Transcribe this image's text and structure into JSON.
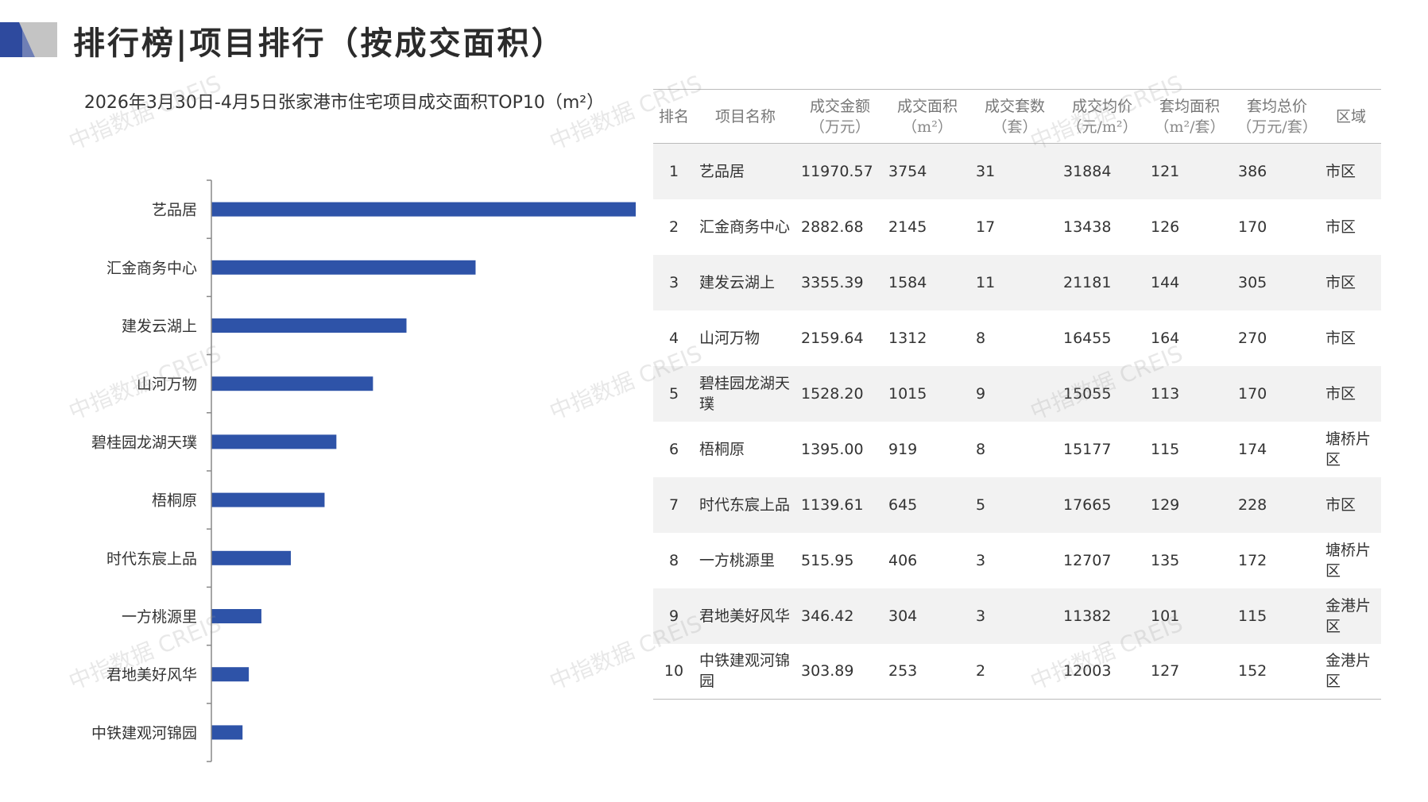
{
  "page": {
    "title": "排行榜|项目排行（按成交面积）"
  },
  "colors": {
    "bar": "#2e53a8",
    "logo_dark": "#2e4a9e",
    "logo_light": "#c4c4c4",
    "row_alt": "#f2f2f2"
  },
  "watermark": {
    "text": "中指数据 CREIS"
  },
  "chart_data": {
    "type": "bar",
    "orientation": "horizontal",
    "title": "2026年3月30日-4月5日张家港市住宅项目成交面积TOP10（m²）",
    "categories": [
      "艺品居",
      "汇金商务中心",
      "建发云湖上",
      "山河万物",
      "碧桂园龙湖天璞",
      "梧桐原",
      "时代东宸上品",
      "一方桃源里",
      "君地美好风华",
      "中铁建观河锦园"
    ],
    "values": [
      3754,
      2145,
      1584,
      1312,
      1015,
      919,
      645,
      406,
      304,
      253
    ],
    "xlim": [
      0,
      4000
    ],
    "grid": false,
    "legend": "none"
  },
  "table": {
    "headers": [
      {
        "line1": "排名",
        "line2": ""
      },
      {
        "line1": "项目名称",
        "line2": ""
      },
      {
        "line1": "成交金额",
        "line2": "（万元）"
      },
      {
        "line1": "成交面积",
        "line2": "（m²）"
      },
      {
        "line1": "成交套数",
        "line2": "（套）"
      },
      {
        "line1": "成交均价",
        "line2": "（元/m²）"
      },
      {
        "line1": "套均面积",
        "line2": "（m²/套）"
      },
      {
        "line1": "套均总价",
        "line2": "（万元/套）"
      },
      {
        "line1": "区域",
        "line2": ""
      }
    ],
    "rows": [
      {
        "rank": "1",
        "name": "艺品居",
        "amount": "11970.57",
        "area": "3754",
        "units": "31",
        "price": "31884",
        "avg_area": "121",
        "avg_total": "386",
        "region": "市区"
      },
      {
        "rank": "2",
        "name": "汇金商务中心",
        "amount": "2882.68",
        "area": "2145",
        "units": "17",
        "price": "13438",
        "avg_area": "126",
        "avg_total": "170",
        "region": "市区"
      },
      {
        "rank": "3",
        "name": "建发云湖上",
        "amount": "3355.39",
        "area": "1584",
        "units": "11",
        "price": "21181",
        "avg_area": "144",
        "avg_total": "305",
        "region": "市区"
      },
      {
        "rank": "4",
        "name": "山河万物",
        "amount": "2159.64",
        "area": "1312",
        "units": "8",
        "price": "16455",
        "avg_area": "164",
        "avg_total": "270",
        "region": "市区"
      },
      {
        "rank": "5",
        "name": "碧桂园龙湖天璞",
        "amount": "1528.20",
        "area": "1015",
        "units": "9",
        "price": "15055",
        "avg_area": "113",
        "avg_total": "170",
        "region": "市区"
      },
      {
        "rank": "6",
        "name": "梧桐原",
        "amount": "1395.00",
        "area": "919",
        "units": "8",
        "price": "15177",
        "avg_area": "115",
        "avg_total": "174",
        "region": "塘桥片区"
      },
      {
        "rank": "7",
        "name": "时代东宸上品",
        "amount": "1139.61",
        "area": "645",
        "units": "5",
        "price": "17665",
        "avg_area": "129",
        "avg_total": "228",
        "region": "市区"
      },
      {
        "rank": "8",
        "name": "一方桃源里",
        "amount": "515.95",
        "area": "406",
        "units": "3",
        "price": "12707",
        "avg_area": "135",
        "avg_total": "172",
        "region": "塘桥片区"
      },
      {
        "rank": "9",
        "name": "君地美好风华",
        "amount": "346.42",
        "area": "304",
        "units": "3",
        "price": "11382",
        "avg_area": "101",
        "avg_total": "115",
        "region": "金港片区"
      },
      {
        "rank": "10",
        "name": "中铁建观河锦园",
        "amount": "303.89",
        "area": "253",
        "units": "2",
        "price": "12003",
        "avg_area": "127",
        "avg_total": "152",
        "region": "金港片区"
      }
    ]
  }
}
